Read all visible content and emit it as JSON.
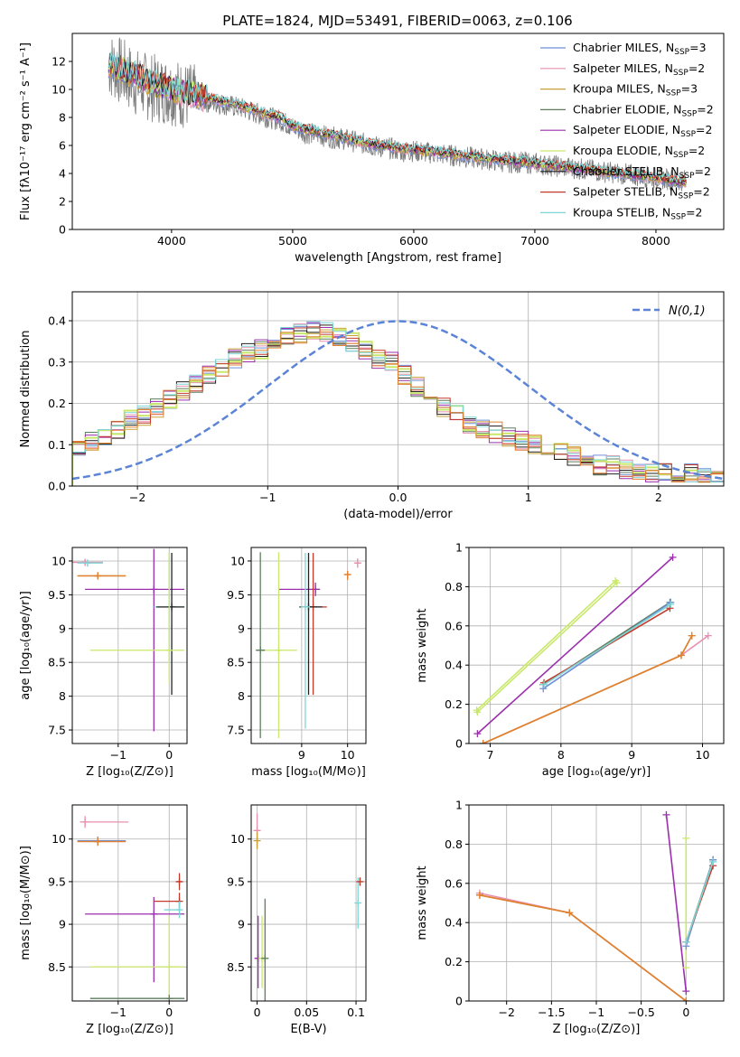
{
  "figure_title": "PLATE=1824, MJD=53491, FIBERID=0063, z=0.106",
  "model_colors": [
    "#6f8fd6",
    "#e88fb0",
    "#c8a038",
    "#5e7d5e",
    "#9b2fae",
    "#c9e86b",
    "#222222",
    "#c43a2a",
    "#7fd6d6"
  ],
  "chart_data": [
    {
      "id": "spectrum",
      "type": "line",
      "title": "PLATE=1824, MJD=53491, FIBERID=0063, z=0.106",
      "xlabel": "wavelength [Angstrom, rest frame]",
      "ylabel": "Flux [fλ10⁻¹⁷ erg cm⁻² s⁻¹ A⁻¹]",
      "xlim": [
        3180,
        8560
      ],
      "ylim": [
        0,
        14
      ],
      "xticks": [
        4000,
        5000,
        6000,
        7000,
        8000
      ],
      "yticks": [
        0,
        2,
        4,
        6,
        8,
        10,
        12
      ],
      "grid": false,
      "legend_position": "top-right",
      "legend": [
        {
          "label": "Chabrier MILES, N",
          "sub": "SSP",
          "post": "=3",
          "color": "#6f8fd6"
        },
        {
          "label": "Salpeter MILES, N",
          "sub": "SSP",
          "post": "=2",
          "color": "#e88fb0"
        },
        {
          "label": "Kroupa MILES, N",
          "sub": "SSP",
          "post": "=3",
          "color": "#c8a038"
        },
        {
          "label": "Chabrier ELODIE, N",
          "sub": "SSP",
          "post": "=2",
          "color": "#5e7d5e"
        },
        {
          "label": "Salpeter ELODIE, N",
          "sub": "SSP",
          "post": "=2",
          "color": "#9b2fae"
        },
        {
          "label": "Kroupa ELODIE, N",
          "sub": "SSP",
          "post": "=2",
          "color": "#c9e86b"
        },
        {
          "label": "Chabrier STELIB, N",
          "sub": "SSP",
          "post": "=2",
          "color": "#222222"
        },
        {
          "label": "Salpeter STELIB, N",
          "sub": "SSP",
          "post": "=2",
          "color": "#c43a2a"
        },
        {
          "label": "Kroupa STELIB, N",
          "sub": "SSP",
          "post": "=2",
          "color": "#7fd6d6"
        }
      ],
      "data_series": {
        "name": "data",
        "color": "#7a7a7a",
        "x": [
          3480,
          3600,
          3700,
          3800,
          3900,
          4000,
          4100,
          4200,
          4300,
          4400,
          4500,
          4600,
          4700,
          4800,
          4900,
          5000,
          5100,
          5200,
          5300,
          5400,
          5500,
          5600,
          5700,
          5800,
          5900,
          6000,
          6100,
          6200,
          6300,
          6400,
          6500,
          6600,
          6700,
          6800,
          6900,
          7000,
          7100,
          7200,
          7300,
          7400,
          7500,
          7600,
          7700,
          7800,
          7900,
          8000,
          8100,
          8200
        ],
        "y": [
          11.8,
          11.2,
          10.5,
          10.2,
          10.0,
          9.9,
          9.6,
          9.3,
          9.1,
          9.0,
          8.8,
          8.6,
          8.3,
          8.0,
          7.8,
          7.3,
          6.9,
          6.8,
          6.6,
          6.5,
          6.3,
          6.1,
          5.9,
          5.8,
          5.6,
          5.6,
          5.5,
          5.4,
          5.3,
          5.2,
          5.1,
          5.0,
          4.9,
          4.8,
          4.8,
          4.7,
          4.6,
          4.5,
          4.4,
          4.3,
          4.2,
          4.1,
          4.0,
          3.9,
          3.8,
          3.7,
          3.6,
          3.5
        ]
      },
      "model_curve": {
        "x": [
          3480,
          3600,
          3700,
          3800,
          3900,
          4000,
          4100,
          4200,
          4300,
          4400,
          4500,
          4600,
          4700,
          4800,
          4900,
          5000,
          5200,
          5400,
          5600,
          5800,
          6000,
          6200,
          6400,
          6600,
          6800,
          7000,
          7200,
          7400,
          7600,
          7800,
          8000,
          8200
        ],
        "y": [
          11.9,
          11.4,
          11.0,
          10.6,
          10.3,
          10.0,
          9.8,
          9.6,
          9.4,
          9.2,
          9.0,
          8.8,
          8.5,
          8.2,
          8.0,
          7.4,
          7.0,
          6.6,
          6.2,
          5.9,
          5.7,
          5.5,
          5.3,
          5.1,
          4.9,
          4.7,
          4.5,
          4.3,
          4.1,
          3.9,
          3.7,
          3.4
        ]
      }
    },
    {
      "id": "residuals",
      "type": "line",
      "xlabel": "(data-model)/error",
      "ylabel": "Normed distribution",
      "xlim": [
        -2.5,
        2.5
      ],
      "ylim": [
        0,
        0.47
      ],
      "xticks": [
        -2,
        -1,
        0,
        1,
        2
      ],
      "yticks": [
        0.0,
        0.1,
        0.2,
        0.3,
        0.4
      ],
      "grid": true,
      "legend_position": "top-right",
      "gaussian_label": "N(0,1)",
      "hist_bins": [
        -2.5,
        -0.1,
        2.5,
        50
      ],
      "hist_base": [
        0.09,
        0.11,
        0.12,
        0.14,
        0.16,
        0.17,
        0.19,
        0.21,
        0.23,
        0.25,
        0.27,
        0.29,
        0.31,
        0.32,
        0.33,
        0.35,
        0.36,
        0.37,
        0.38,
        0.37,
        0.36,
        0.35,
        0.33,
        0.31,
        0.3,
        0.27,
        0.24,
        0.21,
        0.19,
        0.17,
        0.15,
        0.14,
        0.13,
        0.12,
        0.11,
        0.1,
        0.09,
        0.08,
        0.07,
        0.06,
        0.05,
        0.05,
        0.04,
        0.04,
        0.03,
        0.03,
        0.03,
        0.03,
        0.02,
        0.02
      ]
    },
    {
      "id": "age_vs_Z",
      "type": "scatter",
      "xlabel": "Z [log₁₀(Z/Z⊙)]",
      "ylabel": "age  [log₁₀(age/yr)]",
      "xlim": [
        -1.9,
        0.35
      ],
      "ylim": [
        7.3,
        10.2
      ],
      "xticks": [
        -1,
        0
      ],
      "yticks": [
        7.5,
        8.0,
        8.5,
        9.0,
        9.5,
        10.0
      ],
      "grid": true,
      "points": [
        {
          "x": -1.65,
          "y": 9.98,
          "xerr": [
            0.35,
            0.35
          ],
          "yerr": [
            0.05,
            0.05
          ],
          "color": "#e88fb0"
        },
        {
          "x": -1.6,
          "y": 9.97,
          "xerr": [
            0.2,
            0.3
          ],
          "yerr": [
            0.05,
            0.05
          ],
          "color": "#7fd6d6"
        },
        {
          "x": -1.4,
          "y": 9.78,
          "xerr": [
            0.4,
            0.55
          ],
          "yerr": [
            0.05,
            0.05
          ],
          "color": "#c8a038"
        },
        {
          "x": -1.4,
          "y": 9.78,
          "xerr": [
            0.4,
            0.55
          ],
          "yerr": [
            0.05,
            0.05
          ],
          "color": "#e08030"
        },
        {
          "x": -0.3,
          "y": 9.58,
          "xerr": [
            1.35,
            0.6
          ],
          "yerr": [
            2.1,
            0.6
          ],
          "color": "#9b2fae"
        },
        {
          "x": 0.0,
          "y": 9.32,
          "xerr": [
            0.3,
            0.3
          ],
          "yerr": [
            0.8,
            0.8
          ],
          "color": "#7fd6d6"
        },
        {
          "x": 0.05,
          "y": 9.32,
          "xerr": [
            0.3,
            0.25
          ],
          "yerr": [
            1.3,
            0.8
          ],
          "color": "#222222"
        },
        {
          "x": 0.0,
          "y": 8.68,
          "xerr": [
            1.55,
            0.3
          ],
          "yerr": [
            0.5,
            1.45
          ],
          "color": "#c9e86b"
        }
      ]
    },
    {
      "id": "age_vs_mass",
      "type": "scatter",
      "xlabel": "mass [log₁₀(M/M⊙)]",
      "ylabel": "",
      "xlim": [
        7.9,
        10.4
      ],
      "ylim": [
        7.3,
        10.2
      ],
      "xticks": [
        9,
        10
      ],
      "yticks": [
        7.5,
        8.0,
        8.5,
        9.0,
        9.5,
        10.0
      ],
      "grid": true,
      "points": [
        {
          "x": 10.22,
          "y": 9.97,
          "xerr": [
            0.05,
            0.05
          ],
          "yerr": [
            0.07,
            0.07
          ],
          "color": "#e88fb0"
        },
        {
          "x": 10.0,
          "y": 9.8,
          "xerr": [
            0.05,
            0.05
          ],
          "yerr": [
            0.08,
            0.04
          ],
          "color": "#e08030"
        },
        {
          "x": 9.3,
          "y": 9.58,
          "xerr": [
            0.8,
            0.1
          ],
          "yerr": [
            0.1,
            0.1
          ],
          "color": "#9b2fae"
        },
        {
          "x": 9.25,
          "y": 9.32,
          "xerr": [
            0.2,
            0.3
          ],
          "yerr": [
            1.3,
            0.8
          ],
          "color": "#c43a2a"
        },
        {
          "x": 9.15,
          "y": 9.32,
          "xerr": [
            0.2,
            0.3
          ],
          "yerr": [
            1.3,
            0.8
          ],
          "color": "#222222"
        },
        {
          "x": 9.08,
          "y": 9.32,
          "xerr": [
            0.1,
            0.1
          ],
          "yerr": [
            1.8,
            0.8
          ],
          "color": "#7fd6d6"
        },
        {
          "x": 8.5,
          "y": 8.68,
          "xerr": [
            0.45,
            0.4
          ],
          "yerr": [
            1.3,
            1.45
          ],
          "color": "#c9e86b"
        },
        {
          "x": 8.1,
          "y": 8.68,
          "xerr": [
            0.1,
            0.1
          ],
          "yerr": [
            1.3,
            1.45
          ],
          "color": "#5e7d5e"
        }
      ]
    },
    {
      "id": "weight_vs_age",
      "type": "line",
      "xlabel": "age  [log₁₀(age/yr)]",
      "ylabel": "mass weight",
      "xlim": [
        6.7,
        10.3
      ],
      "ylim": [
        0.0,
        1.0
      ],
      "xticks": [
        7,
        8,
        9,
        10
      ],
      "yticks": [
        0.0,
        0.2,
        0.4,
        0.6,
        0.8,
        1.0
      ],
      "grid": true,
      "series": [
        {
          "x": [
            6.81,
            8.77
          ],
          "y": [
            0.17,
            0.83
          ],
          "color": "#c9e86b"
        },
        {
          "x": [
            6.82,
            8.79
          ],
          "y": [
            0.16,
            0.82
          ],
          "color": "#c9e86b"
        },
        {
          "x": [
            6.82,
            9.58
          ],
          "y": [
            0.05,
            0.95
          ],
          "color": "#9b2fae"
        },
        {
          "x": [
            7.75,
            9.54
          ],
          "y": [
            0.3,
            0.72
          ],
          "color": "#5e7d5e"
        },
        {
          "x": [
            7.75,
            9.55
          ],
          "y": [
            0.28,
            0.72
          ],
          "color": "#6f8fd6"
        },
        {
          "x": [
            7.76,
            9.54
          ],
          "y": [
            0.31,
            0.69
          ],
          "color": "#c43a2a"
        },
        {
          "x": [
            7.76,
            9.55
          ],
          "y": [
            0.3,
            0.71
          ],
          "color": "#7fd6d6"
        },
        {
          "x": [
            6.9,
            9.7,
            10.08
          ],
          "y": [
            0.0,
            0.45,
            0.55
          ],
          "color": "#e88fb0"
        },
        {
          "x": [
            6.9,
            9.7,
            9.85
          ],
          "y": [
            0.0,
            0.45,
            0.55
          ],
          "color": "#c8a038"
        },
        {
          "x": [
            6.9,
            9.7,
            9.85
          ],
          "y": [
            0.0,
            0.45,
            0.55
          ],
          "color": "#e08030"
        }
      ]
    },
    {
      "id": "mass_vs_Z",
      "type": "scatter",
      "xlabel": "Z [log₁₀(Z/Z⊙)]",
      "ylabel": "mass [log₁₀(M/M⊙)]",
      "xlim": [
        -1.9,
        0.35
      ],
      "ylim": [
        8.1,
        10.4
      ],
      "xticks": [
        -1,
        0
      ],
      "yticks": [
        8.5,
        9.0,
        9.5,
        10.0
      ],
      "grid": true,
      "points": [
        {
          "x": -1.65,
          "y": 10.2,
          "xerr": [
            0.1,
            0.85
          ],
          "yerr": [
            0.07,
            0.07
          ],
          "color": "#e88fb0"
        },
        {
          "x": -1.4,
          "y": 9.98,
          "xerr": [
            0.4,
            0.55
          ],
          "yerr": [
            0.05,
            0.05
          ],
          "color": "#6f8fd6"
        },
        {
          "x": -1.4,
          "y": 9.97,
          "xerr": [
            0.4,
            0.55
          ],
          "yerr": [
            0.05,
            0.05
          ],
          "color": "#e08030"
        },
        {
          "x": -0.3,
          "y": 9.12,
          "xerr": [
            1.35,
            0.6
          ],
          "yerr": [
            0.8,
            0.2
          ],
          "color": "#9b2fae"
        },
        {
          "x": 0.2,
          "y": 9.5,
          "xerr": [
            0.05,
            0.05
          ],
          "yerr": [
            0.1,
            0.1
          ],
          "color": "#c43a2a"
        },
        {
          "x": 0.2,
          "y": 9.27,
          "xerr": [
            0.5,
            0.0
          ],
          "yerr": [
            0.1,
            0.1
          ],
          "color": "#c43a2a"
        },
        {
          "x": 0.2,
          "y": 9.17,
          "xerr": [
            0.3,
            0.0
          ],
          "yerr": [
            0.1,
            0.1
          ],
          "color": "#7fd6d6"
        },
        {
          "x": 0.0,
          "y": 8.5,
          "xerr": [
            1.55,
            0.3
          ],
          "yerr": [
            0.35,
            0.6
          ],
          "color": "#c9e86b"
        },
        {
          "x": 0.0,
          "y": 8.13,
          "xerr": [
            1.55,
            0.3
          ],
          "yerr": [
            0.0,
            0.0
          ],
          "color": "#5e7d5e"
        }
      ]
    },
    {
      "id": "mass_vs_ebv",
      "type": "scatter",
      "xlabel": "E(B-V)",
      "ylabel": "",
      "xlim": [
        -0.006,
        0.11
      ],
      "ylim": [
        8.1,
        10.4
      ],
      "xticks": [
        0.0,
        0.05,
        0.1
      ],
      "yticks": [
        8.5,
        9.0,
        9.5,
        10.0
      ],
      "grid": true,
      "points": [
        {
          "x": 0.0,
          "y": 10.1,
          "xerr": [
            0.0,
            0.0
          ],
          "yerr": [
            0.2,
            0.2
          ],
          "color": "#e88fb0"
        },
        {
          "x": 0.0,
          "y": 9.98,
          "xerr": [
            0.0,
            0.0
          ],
          "yerr": [
            0.1,
            0.1
          ],
          "color": "#c8a038"
        },
        {
          "x": 0.001,
          "y": 8.6,
          "xerr": [
            0.0,
            0.0
          ],
          "yerr": [
            0.35,
            0.5
          ],
          "color": "#9b2fae"
        },
        {
          "x": 0.005,
          "y": 8.6,
          "xerr": [
            0.0,
            0.0
          ],
          "yerr": [
            0.35,
            0.5
          ],
          "color": "#c9e86b"
        },
        {
          "x": 0.008,
          "y": 8.6,
          "xerr": [
            0.0,
            0.0
          ],
          "yerr": [
            0.5,
            0.7
          ],
          "color": "#5e7d5e"
        },
        {
          "x": 0.102,
          "y": 9.25,
          "xerr": [
            0.0,
            0.0
          ],
          "yerr": [
            0.3,
            0.3
          ],
          "color": "#7fd6d6"
        },
        {
          "x": 0.104,
          "y": 9.5,
          "xerr": [
            0.0,
            0.0
          ],
          "yerr": [
            0.05,
            0.05
          ],
          "color": "#c43a2a"
        }
      ]
    },
    {
      "id": "weight_vs_Z",
      "type": "line",
      "xlabel": "Z [log₁₀(Z/Z⊙)]",
      "ylabel": "mass weight",
      "xlim": [
        -2.42,
        0.42
      ],
      "ylim": [
        0.0,
        1.0
      ],
      "xticks": [
        -2.0,
        -1.5,
        -1.0,
        -0.5,
        0.0
      ],
      "yticks": [
        0.0,
        0.2,
        0.4,
        0.6,
        0.8,
        1.0
      ],
      "grid": true,
      "series": [
        {
          "x": [
            -2.3,
            -1.3,
            0.0
          ],
          "y": [
            0.55,
            0.45,
            0.0
          ],
          "color": "#e88fb0"
        },
        {
          "x": [
            -2.3,
            -1.3,
            0.0
          ],
          "y": [
            0.54,
            0.45,
            0.0
          ],
          "color": "#c8a038"
        },
        {
          "x": [
            -2.3,
            -1.3,
            0.0
          ],
          "y": [
            0.54,
            0.45,
            0.0
          ],
          "color": "#e08030"
        },
        {
          "x": [
            -0.22,
            0.0
          ],
          "y": [
            0.95,
            0.05
          ],
          "color": "#9b2fae"
        },
        {
          "x": [
            0.0,
            0.0
          ],
          "y": [
            0.83,
            0.17
          ],
          "color": "#c9e86b"
        },
        {
          "x": [
            0.0,
            0.3
          ],
          "y": [
            0.3,
            0.72
          ],
          "color": "#5e7d5e"
        },
        {
          "x": [
            0.0,
            0.3
          ],
          "y": [
            0.28,
            0.72
          ],
          "color": "#6f8fd6"
        },
        {
          "x": [
            0.0,
            0.3
          ],
          "y": [
            0.3,
            0.69
          ],
          "color": "#c43a2a"
        },
        {
          "x": [
            0.0,
            0.3
          ],
          "y": [
            0.3,
            0.71
          ],
          "color": "#7fd6d6"
        }
      ]
    }
  ]
}
